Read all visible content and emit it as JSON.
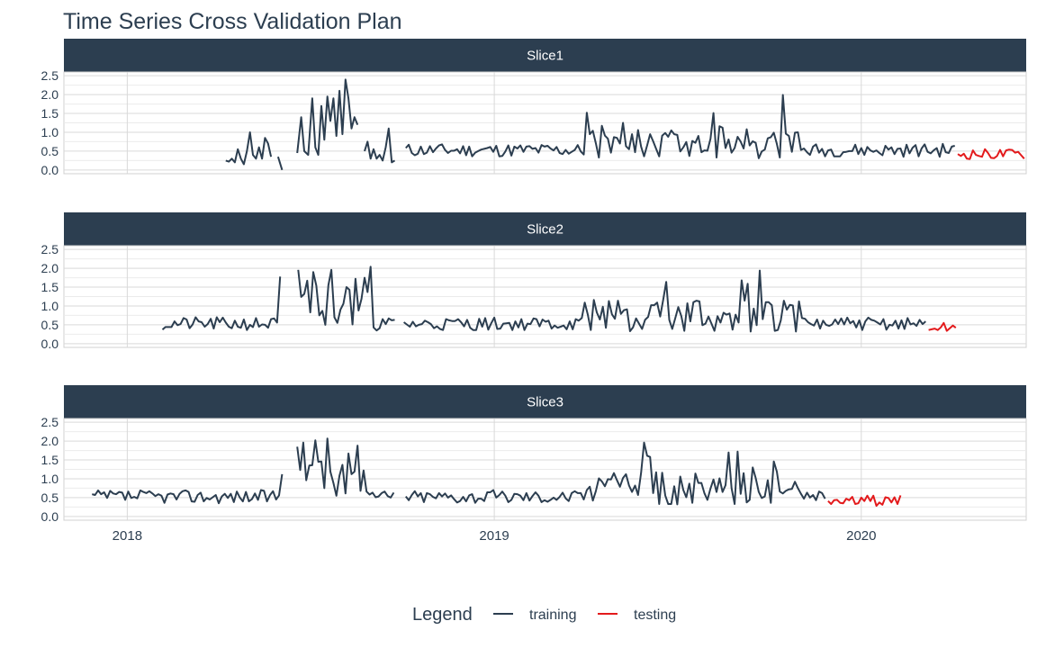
{
  "chart_data": {
    "type": "line",
    "title": "Time Series Cross Validation Plan",
    "xlabel": "",
    "ylabel": "",
    "x_ticks": [
      "2018",
      "2019",
      "2020"
    ],
    "y_ticks": [
      "0.0",
      "0.5",
      "1.0",
      "1.5",
      "2.0",
      "2.5"
    ],
    "ylim": [
      0,
      2.5
    ],
    "xlim": [
      "2017-10-30",
      "2020-06-13"
    ],
    "grid": true,
    "legend": {
      "title": "Legend",
      "position": "bottom",
      "entries": [
        {
          "label": "training",
          "color": "#2c3e50"
        },
        {
          "label": "testing",
          "color": "#e31a1c"
        }
      ]
    },
    "panels": [
      {
        "label": "Slice1",
        "series": [
          {
            "name": "training",
            "color": "#2c3e50",
            "segments": [
              [
                [
                  "2018-04-09",
                  0.25
                ],
                [
                  "2018-04-12",
                  0.22
                ],
                [
                  "2018-04-15",
                  0.3
                ],
                [
                  "2018-04-18",
                  0.2
                ],
                [
                  "2018-04-21",
                  0.55
                ],
                [
                  "2018-04-24",
                  0.3
                ],
                [
                  "2018-04-27",
                  0.15
                ],
                [
                  "2018-04-30",
                  0.5
                ],
                [
                  "2018-05-03",
                  1.0
                ],
                [
                  "2018-05-06",
                  0.4
                ],
                [
                  "2018-05-09",
                  0.3
                ],
                [
                  "2018-05-12",
                  0.6
                ],
                [
                  "2018-05-15",
                  0.3
                ],
                [
                  "2018-05-18",
                  0.85
                ],
                [
                  "2018-05-21",
                  0.7
                ],
                [
                  "2018-05-24",
                  0.35
                ]
              ],
              [
                [
                  "2018-05-31",
                  0.35
                ],
                [
                  "2018-06-04",
                  0.0
                ]
              ],
              [
                [
                  "2018-06-19",
                  0.45
                ],
                [
                  "2018-06-23",
                  1.4
                ],
                [
                  "2018-06-26",
                  0.5
                ],
                [
                  "2018-06-30",
                  0.4
                ],
                [
                  "2018-07-04",
                  1.9
                ],
                [
                  "2018-07-07",
                  0.6
                ],
                [
                  "2018-07-10",
                  0.4
                ],
                [
                  "2018-07-13",
                  1.7
                ],
                [
                  "2018-07-16",
                  0.8
                ],
                [
                  "2018-07-19",
                  1.95
                ],
                [
                  "2018-07-22",
                  1.3
                ],
                [
                  "2018-07-25",
                  1.9
                ],
                [
                  "2018-07-28",
                  0.9
                ],
                [
                  "2018-07-31",
                  2.1
                ],
                [
                  "2018-08-03",
                  0.95
                ],
                [
                  "2018-08-06",
                  2.4
                ],
                [
                  "2018-08-09",
                  1.9
                ],
                [
                  "2018-08-12",
                  1.1
                ],
                [
                  "2018-08-15",
                  1.4
                ],
                [
                  "2018-08-18",
                  1.2
                ]
              ],
              [
                [
                  "2018-08-25",
                  0.5
                ],
                [
                  "2018-08-28",
                  0.75
                ],
                [
                  "2018-08-31",
                  0.3
                ],
                [
                  "2018-09-03",
                  0.55
                ],
                [
                  "2018-09-06",
                  0.3
                ],
                [
                  "2018-09-09",
                  0.4
                ],
                [
                  "2018-09-12",
                  0.25
                ],
                [
                  "2018-09-15",
                  0.6
                ],
                [
                  "2018-09-18",
                  1.1
                ],
                [
                  "2018-09-21",
                  0.2
                ],
                [
                  "2018-09-24",
                  0.25
                ]
              ]
            ]
          }
        ]
      }
    ]
  }
}
